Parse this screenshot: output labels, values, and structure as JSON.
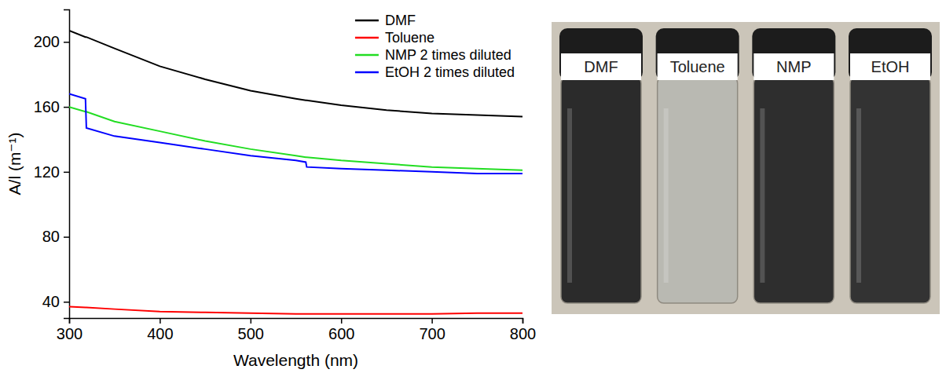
{
  "chart_data": {
    "type": "line",
    "x_label": "Wavelength (nm)",
    "y_label": "A/l (m⁻¹)",
    "x": [
      300,
      318,
      319,
      350,
      400,
      450,
      500,
      550,
      561,
      562,
      600,
      650,
      700,
      750,
      800
    ],
    "series": [
      {
        "name": "DMF",
        "color": "#000000",
        "values": [
          207,
          203,
          203,
          196,
          185,
          177,
          170,
          165,
          164,
          164,
          161,
          158,
          156,
          155,
          154
        ]
      },
      {
        "name": "Toluene",
        "color": "#ff0000",
        "values": [
          37,
          36.5,
          36.5,
          35.5,
          34,
          33.5,
          33,
          32.5,
          32.5,
          32.5,
          32.5,
          32.5,
          32.5,
          33,
          33
        ]
      },
      {
        "name": "NMP 2 times diluted",
        "color": "#22dd22",
        "values": [
          160,
          157,
          157,
          151,
          145,
          139,
          134,
          130,
          129,
          129,
          127,
          125,
          123,
          122,
          121
        ]
      },
      {
        "name": "EtOH 2 times diluted",
        "color": "#0000ff",
        "values": [
          168,
          165,
          147,
          142,
          138,
          134,
          130,
          127,
          126,
          123,
          122,
          121,
          120,
          119,
          119
        ]
      }
    ],
    "xlim": [
      300,
      800
    ],
    "xticks": [
      300,
      400,
      500,
      600,
      700,
      800
    ],
    "ylim": [
      30,
      220
    ],
    "yticks": [
      40,
      80,
      120,
      160,
      200
    ],
    "grid": false,
    "legend": "upper right"
  },
  "photo": {
    "samples": [
      {
        "label": "DMF",
        "color": "#2b2b2b"
      },
      {
        "label": "Toluene",
        "color": "#b9b9b2"
      },
      {
        "label": "NMP",
        "color": "#2e2e2e"
      },
      {
        "label": "EtOH",
        "color": "#333333"
      }
    ]
  }
}
